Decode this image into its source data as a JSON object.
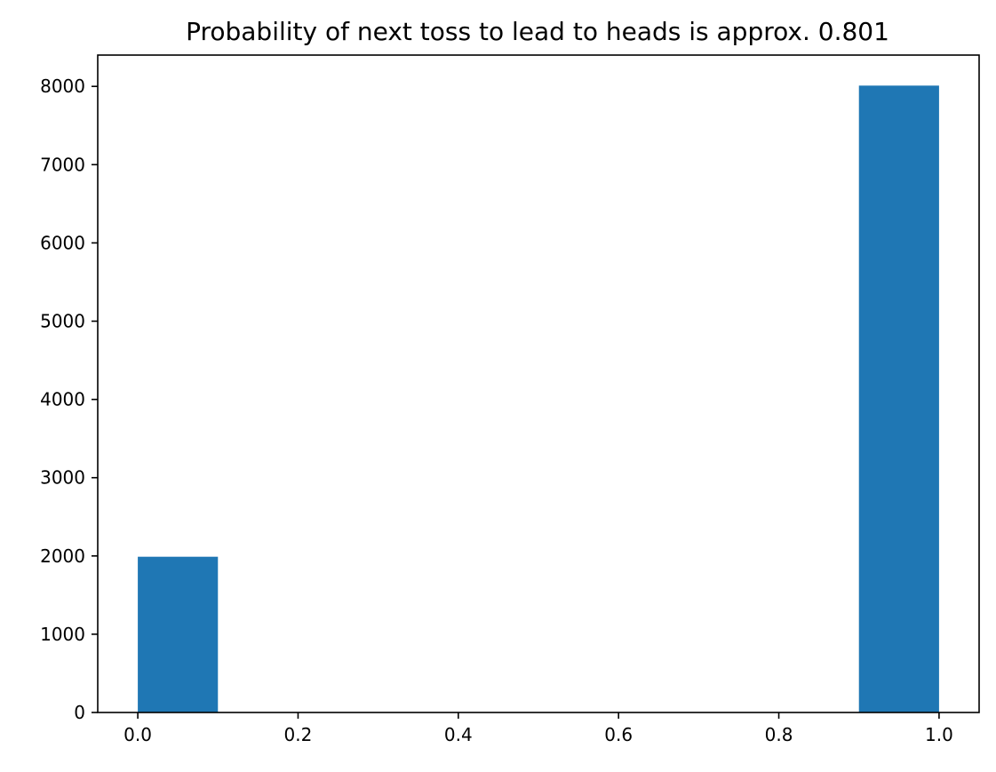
{
  "chart_data": {
    "type": "bar",
    "title": "Probability of next toss to lead to heads is approx. 0.801",
    "xlabel": "",
    "ylabel": "",
    "bins": [
      {
        "x0": 0.0,
        "x1": 0.1,
        "count": 1990
      },
      {
        "x0": 0.1,
        "x1": 0.2,
        "count": 0
      },
      {
        "x0": 0.2,
        "x1": 0.3,
        "count": 0
      },
      {
        "x0": 0.3,
        "x1": 0.4,
        "count": 0
      },
      {
        "x0": 0.4,
        "x1": 0.5,
        "count": 0
      },
      {
        "x0": 0.5,
        "x1": 0.6,
        "count": 0
      },
      {
        "x0": 0.6,
        "x1": 0.7,
        "count": 0
      },
      {
        "x0": 0.7,
        "x1": 0.8,
        "count": 0
      },
      {
        "x0": 0.8,
        "x1": 0.9,
        "count": 0
      },
      {
        "x0": 0.9,
        "x1": 1.0,
        "count": 8010
      }
    ],
    "xlim": [
      -0.05,
      1.05
    ],
    "ylim": [
      0,
      8400
    ],
    "xticks": [
      "0.0",
      "0.2",
      "0.4",
      "0.6",
      "0.8",
      "1.0"
    ],
    "yticks": [
      "0",
      "1000",
      "2000",
      "3000",
      "4000",
      "5000",
      "6000",
      "7000",
      "8000"
    ],
    "grid": false,
    "legend": "none",
    "bar_color": "#1f77b4"
  }
}
